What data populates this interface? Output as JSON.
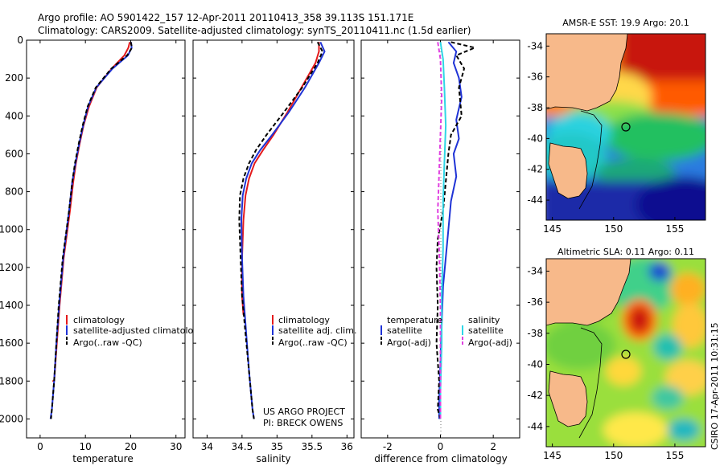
{
  "header": {
    "line1": "Argo profile: AO 5901422_157 12-Apr-2011 20110413_358 39.113S 151.171E",
    "line2": "Climatology: CARS2009. Satellite-adjusted climatology: synTS_20110411.nc (1.5d earlier)"
  },
  "colors": {
    "climatology": "#e41a1c",
    "satellite": "#1f33d6",
    "argo": "#000000",
    "salinity_sat": "#2fd6e6",
    "salinity_argo": "#e040e0",
    "land": "#f7b98a"
  },
  "chart_data": [
    {
      "type": "line",
      "xlabel": "temperature",
      "ylabel": "",
      "xlim": [
        -3,
        32
      ],
      "ylim": [
        2100,
        0
      ],
      "xticks": [
        "0",
        "10",
        "20",
        "30"
      ],
      "yticks": [
        "0",
        "200",
        "400",
        "600",
        "800",
        "1000",
        "1200",
        "1400",
        "1600",
        "1800",
        "2000"
      ],
      "series": [
        {
          "name": "climatology",
          "style": "solid",
          "color": "#e41a1c",
          "x": [
            19.8,
            19.5,
            18.6,
            15.8,
            12.5,
            10.8,
            9.6,
            8.7,
            7.9,
            7.3,
            6.6,
            5.2,
            4.3,
            3.7,
            3.1,
            2.7
          ],
          "y": [
            10,
            40,
            80,
            150,
            250,
            350,
            450,
            550,
            650,
            750,
            900,
            1150,
            1400,
            1600,
            1800,
            1800
          ]
        },
        {
          "name": "satellite-adjusted climatology",
          "style": "solid",
          "color": "#1f33d6",
          "x": [
            20.1,
            20.2,
            19.4,
            16.0,
            12.4,
            10.6,
            9.5,
            8.6,
            7.8,
            7.1,
            6.4,
            5.1,
            4.2,
            3.6,
            3.1,
            2.6,
            2.3
          ],
          "y": [
            10,
            40,
            80,
            150,
            250,
            350,
            450,
            550,
            650,
            750,
            900,
            1150,
            1400,
            1600,
            1800,
            1950,
            2000
          ]
        },
        {
          "name": "Argo(..raw -QC)",
          "style": "dashed",
          "color": "#000000",
          "x": [
            20.0,
            20.3,
            19.2,
            15.7,
            12.3,
            10.5,
            9.4,
            8.5,
            7.7,
            7.1,
            6.4,
            5.0,
            4.1,
            3.6,
            3.1,
            2.6,
            2.4
          ],
          "y": [
            10,
            40,
            80,
            150,
            250,
            350,
            450,
            550,
            650,
            750,
            900,
            1150,
            1400,
            1600,
            1800,
            1950,
            2000
          ]
        }
      ],
      "legend": [
        "climatology",
        "satellite-adjusted climatology",
        "Argo(..raw -QC)"
      ]
    },
    {
      "type": "line",
      "xlabel": "salinity",
      "ylabel": "",
      "xlim": [
        33.8,
        36.1
      ],
      "ylim": [
        2100,
        0
      ],
      "xticks": [
        "34",
        "34.5",
        "35",
        "35.5",
        "36"
      ],
      "series": [
        {
          "name": "climatology",
          "style": "solid",
          "color": "#e41a1c",
          "x": [
            35.6,
            35.6,
            35.55,
            35.35,
            35.15,
            34.95,
            34.8,
            34.68,
            34.6,
            34.55,
            34.52,
            34.5,
            34.5,
            34.52
          ],
          "y": [
            10,
            60,
            120,
            250,
            380,
            500,
            580,
            650,
            730,
            820,
            950,
            1150,
            1350,
            1450
          ]
        },
        {
          "name": "satellite adj. clim.",
          "style": "solid",
          "color": "#1f33d6",
          "x": [
            35.62,
            35.68,
            35.6,
            35.4,
            35.17,
            34.93,
            34.76,
            34.64,
            34.56,
            34.51,
            34.49,
            34.5,
            34.52,
            34.56,
            34.6,
            34.65,
            34.67
          ],
          "y": [
            10,
            60,
            120,
            250,
            380,
            500,
            580,
            650,
            730,
            820,
            950,
            1150,
            1350,
            1550,
            1750,
            1950,
            2000
          ]
        },
        {
          "name": "Argo(..raw -QC)",
          "style": "dashed",
          "color": "#000000",
          "x": [
            35.58,
            35.65,
            35.58,
            35.36,
            35.1,
            34.85,
            34.7,
            34.6,
            34.52,
            34.47,
            34.46,
            34.48,
            34.5,
            34.55,
            34.6,
            34.65,
            34.67
          ],
          "y": [
            10,
            60,
            120,
            250,
            380,
            500,
            580,
            650,
            730,
            820,
            950,
            1150,
            1350,
            1550,
            1750,
            1950,
            2000
          ]
        }
      ],
      "legend": [
        "climatology",
        "satellite adj. clim.",
        "Argo(..raw -QC)"
      ],
      "annotation": [
        "US ARGO PROJECT",
        "PI: BRECK OWENS"
      ]
    },
    {
      "type": "line",
      "xlabel": "difference from climatology",
      "ylabel": "",
      "xlim": [
        -3,
        3
      ],
      "ylim": [
        2100,
        0
      ],
      "xticks": [
        "-2",
        "0",
        "2"
      ],
      "series": [
        {
          "name": "temperature satellite",
          "style": "solid",
          "color": "#1f33d6",
          "x": [
            0.3,
            0.6,
            0.5,
            0.7,
            0.8,
            0.6,
            0.7,
            0.5,
            0.6,
            0.4,
            0.3,
            0.2,
            0.1,
            0.05,
            0.0,
            -0.05,
            -0.05
          ],
          "y": [
            10,
            60,
            120,
            200,
            300,
            420,
            520,
            600,
            720,
            850,
            1000,
            1150,
            1300,
            1500,
            1700,
            1900,
            2000
          ]
        },
        {
          "name": "temperature Argo(-adj)",
          "style": "dashed",
          "color": "#000000",
          "x": [
            0.4,
            1.3,
            0.6,
            0.9,
            0.7,
            0.8,
            0.4,
            0.3,
            0.2,
            0.1,
            -0.1,
            -0.15,
            -0.1,
            -0.15,
            -0.05,
            -0.1,
            0.0
          ],
          "y": [
            10,
            40,
            80,
            150,
            250,
            400,
            500,
            600,
            750,
            900,
            1050,
            1200,
            1400,
            1600,
            1800,
            1950,
            2000
          ]
        },
        {
          "name": "salinity satellite",
          "style": "solid",
          "color": "#2fd6e6",
          "x": [
            0.0,
            0.1,
            0.15,
            0.2,
            0.15,
            0.1,
            0.1,
            0.05,
            0.05,
            0.0,
            0.0
          ],
          "y": [
            10,
            100,
            250,
            450,
            650,
            850,
            1100,
            1350,
            1600,
            1850,
            2000
          ]
        },
        {
          "name": "salinity Argo(-adj)",
          "style": "dashed",
          "color": "#e040e0",
          "x": [
            -0.1,
            0.0,
            0.05,
            0.0,
            -0.05,
            -0.1,
            -0.05,
            0.0,
            0.0,
            0.0
          ],
          "y": [
            10,
            100,
            300,
            500,
            700,
            900,
            1100,
            1400,
            1700,
            2000
          ]
        }
      ],
      "legend": [
        "temperature",
        "satellite",
        "Argo(-adj)",
        "salinity",
        "satellite",
        "Argo(-adj)"
      ]
    },
    {
      "type": "heatmap",
      "title": "AMSR-E SST: 19.9 Argo: 20.1",
      "xticks": [
        "145",
        "150",
        "155"
      ],
      "yticks": [
        "-34",
        "-36",
        "-38",
        "-40",
        "-42",
        "-44"
      ],
      "xlim": [
        144.5,
        157.5
      ],
      "ylim": [
        -45.3,
        -33.2
      ],
      "marker": {
        "lon": 151.171,
        "lat": -39.113
      }
    },
    {
      "type": "heatmap",
      "title": "Altimetric SLA: 0.11 Argo: 0.11",
      "xticks": [
        "145",
        "150",
        "155"
      ],
      "yticks": [
        "-34",
        "-36",
        "-38",
        "-40",
        "-42",
        "-44"
      ],
      "xlim": [
        144.5,
        157.5
      ],
      "ylim": [
        -45.3,
        -33.2
      ],
      "marker": {
        "lon": 151.171,
        "lat": -39.113
      }
    }
  ],
  "footer": {
    "stamp": "CSIRO 17-Apr-2011 10:31:15"
  }
}
